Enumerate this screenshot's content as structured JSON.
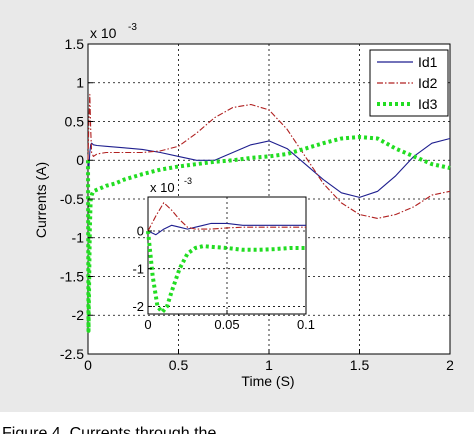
{
  "chart_data": [
    {
      "type": "line",
      "xlabel": "Time (S)",
      "ylabel": "Currents (A)",
      "exponent_label": "x 10",
      "exponent_power": "-3",
      "xlim": [
        0,
        2
      ],
      "ylim": [
        -2.5,
        1.5
      ],
      "xticks": [
        "0",
        "0.5",
        "1",
        "1.5",
        "2"
      ],
      "yticks": [
        "1.5",
        "1",
        "0.5",
        "0",
        "-0.5",
        "-1",
        "-1.5",
        "-2",
        "-2.5"
      ],
      "grid": true,
      "legend_position": "top-right",
      "series": [
        {
          "name": "Id1",
          "color": "#1f1f8f",
          "style": "solid",
          "x": [
            0,
            0.005,
            0.01,
            0.015,
            0.02,
            0.03,
            0.05,
            0.1,
            0.2,
            0.3,
            0.4,
            0.5,
            0.6,
            0.7,
            0.8,
            0.9,
            1.0,
            1.1,
            1.2,
            1.3,
            1.4,
            1.5,
            1.6,
            1.7,
            1.8,
            1.9,
            2.0
          ],
          "y": [
            0,
            -0.1,
            0.1,
            0.2,
            0.22,
            0.2,
            0.19,
            0.18,
            0.16,
            0.14,
            0.1,
            0.05,
            0.0,
            0.0,
            0.1,
            0.2,
            0.25,
            0.15,
            -0.05,
            -0.25,
            -0.42,
            -0.48,
            -0.4,
            -0.2,
            0.05,
            0.22,
            0.28
          ]
        },
        {
          "name": "Id2",
          "color": "#b02020",
          "style": "dashdot",
          "x": [
            0,
            0.005,
            0.01,
            0.015,
            0.02,
            0.03,
            0.05,
            0.1,
            0.2,
            0.3,
            0.4,
            0.5,
            0.6,
            0.7,
            0.8,
            0.9,
            1.0,
            1.1,
            1.2,
            1.3,
            1.4,
            1.5,
            1.6,
            1.7,
            1.8,
            1.9,
            2.0
          ],
          "y": [
            0,
            0.5,
            0.85,
            0.4,
            0.1,
            0.05,
            0.08,
            0.1,
            0.1,
            0.1,
            0.12,
            0.18,
            0.35,
            0.55,
            0.68,
            0.72,
            0.65,
            0.4,
            0.05,
            -0.3,
            -0.55,
            -0.7,
            -0.75,
            -0.7,
            -0.6,
            -0.45,
            -0.4
          ]
        },
        {
          "name": "Id3",
          "color": "#22dd22",
          "style": "dotted",
          "x": [
            0,
            0.003,
            0.006,
            0.01,
            0.015,
            0.02,
            0.03,
            0.05,
            0.08,
            0.1,
            0.15,
            0.2,
            0.3,
            0.4,
            0.5,
            0.6,
            0.7,
            0.8,
            0.9,
            1.0,
            1.1,
            1.2,
            1.3,
            1.4,
            1.5,
            1.6,
            1.7,
            1.8,
            1.9,
            2.0
          ],
          "y": [
            0,
            -2.2,
            -1.6,
            -0.9,
            -0.5,
            -0.45,
            -0.4,
            -0.38,
            -0.35,
            -0.33,
            -0.3,
            -0.25,
            -0.18,
            -0.12,
            -0.08,
            -0.05,
            -0.02,
            0.0,
            0.03,
            0.05,
            0.08,
            0.15,
            0.22,
            0.28,
            0.3,
            0.28,
            0.15,
            0.05,
            -0.05,
            -0.1
          ]
        }
      ]
    },
    {
      "type": "line",
      "exponent_label": "x 10",
      "exponent_power": "-3",
      "xlim": [
        0,
        0.1
      ],
      "ylim": [
        -2.2,
        0.9
      ],
      "xticks": [
        "0",
        "0.05",
        "0.1"
      ],
      "yticks": [
        "0",
        "-1",
        "-2"
      ],
      "grid": true,
      "series": [
        {
          "color": "#1f1f8f",
          "style": "solid",
          "x": [
            0,
            0.005,
            0.01,
            0.015,
            0.02,
            0.025,
            0.03,
            0.035,
            0.04,
            0.05,
            0.06,
            0.07,
            0.08,
            0.09,
            0.1
          ],
          "y": [
            0,
            -0.1,
            0.05,
            0.15,
            0.1,
            0.05,
            0.1,
            0.15,
            0.2,
            0.2,
            0.15,
            0.15,
            0.15,
            0.15,
            0.15
          ]
        },
        {
          "color": "#b02020",
          "style": "dashdot",
          "x": [
            0,
            0.005,
            0.01,
            0.015,
            0.02,
            0.025,
            0.03,
            0.04,
            0.05,
            0.06,
            0.07,
            0.08,
            0.09,
            0.1
          ],
          "y": [
            0,
            0.4,
            0.75,
            0.55,
            0.3,
            0.1,
            0.05,
            0.05,
            0.08,
            0.1,
            0.1,
            0.1,
            0.1,
            0.1
          ]
        },
        {
          "color": "#22dd22",
          "style": "dotted",
          "x": [
            0,
            0.003,
            0.006,
            0.009,
            0.012,
            0.015,
            0.02,
            0.025,
            0.03,
            0.035,
            0.04,
            0.05,
            0.06,
            0.07,
            0.08,
            0.09,
            0.1
          ],
          "y": [
            0,
            -1.2,
            -2.0,
            -2.15,
            -2.0,
            -1.6,
            -1.0,
            -0.6,
            -0.45,
            -0.4,
            -0.42,
            -0.45,
            -0.5,
            -0.5,
            -0.48,
            -0.45,
            -0.45
          ]
        }
      ]
    }
  ],
  "caption": {
    "text": "Figure 4. Currents through the...",
    "partial": "currents"
  }
}
